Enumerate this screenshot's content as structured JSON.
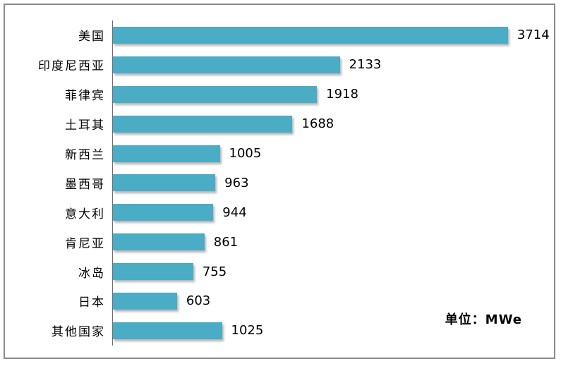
{
  "chart_data": {
    "type": "bar",
    "orientation": "horizontal",
    "title": "",
    "xlabel": "",
    "ylabel": "",
    "categories": [
      "美国",
      "印度尼西亚",
      "菲律宾",
      "土耳其",
      "新西兰",
      "墨西哥",
      "意大利",
      "肯尼亚",
      "冰岛",
      "日本",
      "其他国家"
    ],
    "values": [
      3714,
      2133,
      1918,
      1688,
      1005,
      963,
      944,
      861,
      755,
      603,
      1025
    ],
    "xlim": [
      0,
      4000
    ],
    "grid": false,
    "legend": false,
    "value_labels_shown": true,
    "bar_color": "#4BACC6",
    "axis_color": "#6e6e6e",
    "frame_border_color": "#8a8a8a"
  },
  "annotation": {
    "unit_label": "单位：MWe"
  }
}
